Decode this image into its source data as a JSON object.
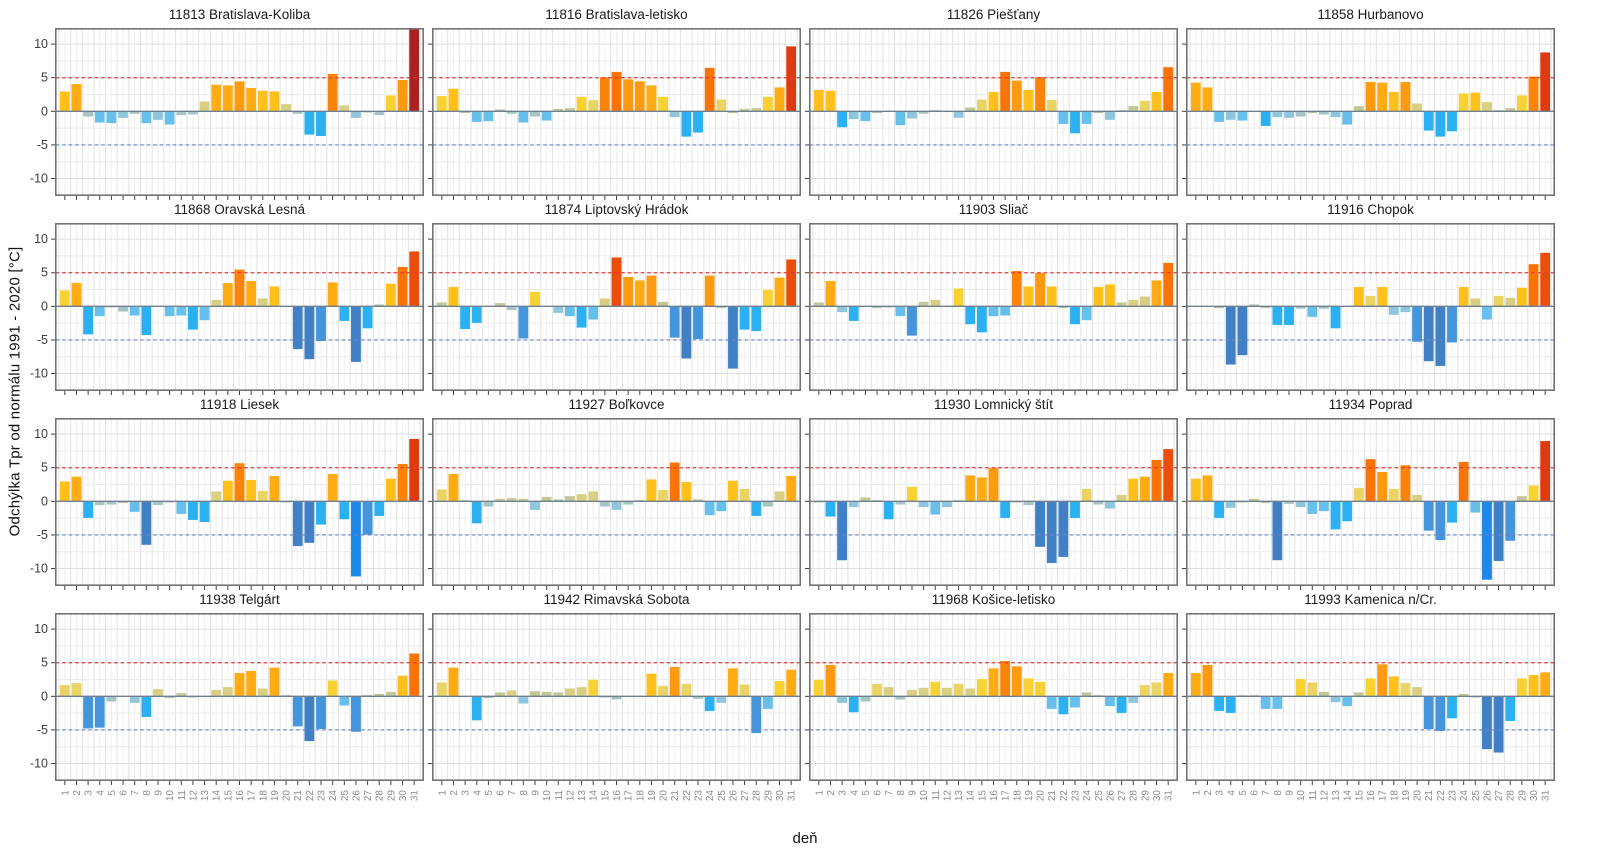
{
  "axis": {
    "y_label": "Odchýlka Tpr od normálu 1991 - 2020 [°C]",
    "x_label": "deň",
    "y_ticks": [
      10,
      5,
      0,
      -5,
      -10
    ],
    "x_tick_first": 1,
    "x_tick_last": 31
  },
  "chart_data": {
    "type": "bar",
    "layout": "small-multiples 4x4",
    "x": [
      1,
      2,
      3,
      4,
      5,
      6,
      7,
      8,
      9,
      10,
      11,
      12,
      13,
      14,
      15,
      16,
      17,
      18,
      19,
      20,
      21,
      22,
      23,
      24,
      25,
      26,
      27,
      28,
      29,
      30,
      31
    ],
    "xlabel": "deň",
    "ylabel": "Odchýlka Tpr od normálu 1991 - 2020 [°C]",
    "ylim": [
      -12.6,
      12.4
    ],
    "grid": true,
    "ref_lines": [
      {
        "y": 5,
        "style": "dashed",
        "color": "#e03c3c"
      },
      {
        "y": -5,
        "style": "dashed",
        "color": "#6a85c2"
      },
      {
        "y": 0,
        "style": "solid",
        "color": "#708090"
      }
    ],
    "color_scale": [
      {
        "ge": 12,
        "color": "#a9221f"
      },
      {
        "ge": 8.4,
        "color": "#df3910"
      },
      {
        "ge": 6.9,
        "color": "#eb4d0b"
      },
      {
        "ge": 5.8,
        "color": "#f97307"
      },
      {
        "ge": 5.1,
        "color": "#fb8408"
      },
      {
        "ge": 4.35,
        "color": "#fe9a10"
      },
      {
        "ge": 3.5,
        "color": "#ffac14"
      },
      {
        "ge": 2.8,
        "color": "#ffc01c"
      },
      {
        "ge": 2.15,
        "color": "#f8d133"
      },
      {
        "ge": 1.55,
        "color": "#ead464"
      },
      {
        "ge": 0.85,
        "color": "#d9cf83"
      },
      {
        "ge": 0.35,
        "color": "#c3c795"
      },
      {
        "ge": -0.35,
        "color": "#b2c2a8"
      },
      {
        "ge": -0.85,
        "color": "#a6c4c3"
      },
      {
        "ge": -1.35,
        "color": "#90c6dc"
      },
      {
        "ge": -2.15,
        "color": "#67c0eb"
      },
      {
        "ge": -4.35,
        "color": "#2bb1f1"
      },
      {
        "ge": -6.1,
        "color": "#4495dc"
      },
      {
        "ge": -9.55,
        "color": "#4180c5"
      }
    ],
    "color_low": "#1e88e8",
    "panels": [
      {
        "title": "11813 Bratislava-Koliba",
        "values": [
          3.0,
          4.1,
          -0.8,
          -1.7,
          -1.8,
          -1.0,
          -0.4,
          -1.8,
          -1.3,
          -2.0,
          -0.6,
          -0.5,
          1.5,
          4.0,
          3.9,
          4.5,
          3.5,
          3.1,
          3.0,
          1.1,
          -0.4,
          -3.5,
          -3.7,
          5.6,
          0.9,
          -1.0,
          -0.2,
          -0.6,
          2.4,
          4.7,
          12.8
        ]
      },
      {
        "title": "11816 Bratislava-letisko",
        "values": [
          2.3,
          3.4,
          -0.3,
          -1.6,
          -1.5,
          0.3,
          -0.4,
          -1.7,
          -0.8,
          -1.4,
          0.4,
          0.5,
          2.2,
          1.7,
          5.1,
          5.9,
          4.8,
          4.5,
          3.9,
          2.2,
          -0.9,
          -3.8,
          -3.2,
          6.5,
          1.8,
          -0.3,
          0.4,
          0.5,
          2.2,
          3.6,
          9.7
        ]
      },
      {
        "title": "11826 Piešťany",
        "values": [
          3.2,
          3.1,
          -2.4,
          -1.2,
          -1.5,
          -0.3,
          0.1,
          -2.1,
          -1.1,
          -0.4,
          0.2,
          0.1,
          -1.0,
          0.6,
          1.8,
          2.9,
          5.9,
          4.6,
          3.2,
          5.1,
          1.7,
          -1.9,
          -3.3,
          -1.9,
          -0.3,
          -1.3,
          0.2,
          0.8,
          1.6,
          2.9,
          6.6
        ]
      },
      {
        "title": "11858 Hurbanovo",
        "values": [
          4.3,
          3.6,
          -1.6,
          -1.3,
          -1.4,
          -0.1,
          -2.2,
          -0.9,
          -1.0,
          -0.8,
          -0.3,
          -0.5,
          -0.9,
          -2.0,
          0.8,
          4.4,
          4.3,
          2.9,
          4.4,
          1.2,
          -2.9,
          -3.8,
          -3.0,
          2.7,
          2.8,
          1.4,
          0.2,
          0.5,
          2.4,
          5.2,
          8.8
        ]
      },
      {
        "title": "11868 Oravská Lesná",
        "values": [
          2.4,
          3.5,
          -4.2,
          -1.5,
          -0.2,
          -0.8,
          -1.4,
          -4.3,
          -0.1,
          -1.5,
          -1.4,
          -3.5,
          -2.1,
          1.0,
          3.5,
          5.5,
          3.8,
          1.2,
          3.0,
          -0.1,
          -6.4,
          -7.9,
          -5.2,
          3.6,
          -2.2,
          -8.3,
          -3.3,
          0.3,
          3.4,
          5.9,
          8.2
        ]
      },
      {
        "title": "11874 Liptovský Hrádok",
        "values": [
          0.6,
          2.9,
          -3.4,
          -2.5,
          -0.1,
          0.5,
          -0.6,
          -4.8,
          2.2,
          -0.1,
          -1.0,
          -1.5,
          -3.2,
          -2.0,
          1.2,
          7.3,
          4.4,
          3.9,
          4.6,
          0.7,
          -4.7,
          -7.8,
          -4.9,
          4.6,
          -0.3,
          -9.3,
          -3.5,
          -3.7,
          2.5,
          4.3,
          7.0
        ]
      },
      {
        "title": "11903 Sliač",
        "values": [
          0.6,
          3.8,
          -0.9,
          -2.2,
          -0.1,
          -0.3,
          -0.2,
          -1.5,
          -4.4,
          0.7,
          1.0,
          0.1,
          2.7,
          -2.7,
          -3.9,
          -1.5,
          -1.4,
          5.3,
          3.0,
          5.0,
          3.0,
          -0.3,
          -2.7,
          -2.1,
          2.9,
          3.3,
          0.6,
          1.0,
          1.5,
          3.9,
          6.5
        ]
      },
      {
        "title": "11916 Chopok",
        "values": [
          -0.1,
          -0.1,
          -0.3,
          -8.7,
          -7.3,
          0.3,
          -0.3,
          -2.8,
          -2.8,
          -0.4,
          -1.6,
          -0.4,
          -3.3,
          -0.1,
          2.9,
          1.6,
          2.9,
          -1.3,
          -0.9,
          -5.3,
          -8.2,
          -8.9,
          -5.4,
          2.9,
          1.2,
          -2.0,
          1.6,
          1.3,
          2.8,
          6.3,
          8.0
        ]
      },
      {
        "title": "11918 Liesek",
        "values": [
          3.0,
          3.7,
          -2.5,
          -0.6,
          -0.5,
          -0.3,
          -1.6,
          -6.5,
          -0.6,
          -0.2,
          -1.9,
          -2.8,
          -3.1,
          1.5,
          3.1,
          5.7,
          3.2,
          1.6,
          3.8,
          -0.2,
          -6.7,
          -6.2,
          -3.5,
          4.1,
          -2.7,
          -11.2,
          -5.0,
          -2.2,
          3.4,
          5.6,
          9.3
        ]
      },
      {
        "title": "11927 Boľkovce",
        "values": [
          1.8,
          4.1,
          0.2,
          -3.3,
          -0.8,
          0.4,
          0.5,
          0.4,
          -1.3,
          0.7,
          0.3,
          0.8,
          1.1,
          1.5,
          -0.8,
          -1.3,
          -0.5,
          0.2,
          3.3,
          1.7,
          5.8,
          2.9,
          0.3,
          -2.1,
          -1.5,
          3.1,
          1.9,
          -2.2,
          -0.8,
          1.5,
          3.8
        ]
      },
      {
        "title": "11930 Lomnický štít",
        "values": [
          -0.2,
          -2.3,
          -8.8,
          -0.9,
          0.6,
          0.2,
          -2.7,
          -0.5,
          2.2,
          -0.9,
          -2.0,
          -0.9,
          0.2,
          3.9,
          3.6,
          5.0,
          -2.5,
          -0.2,
          -0.6,
          -6.8,
          -9.2,
          -8.3,
          -2.5,
          1.9,
          -0.5,
          -1.1,
          1.0,
          3.4,
          3.7,
          6.2,
          7.8
        ]
      },
      {
        "title": "11934 Poprad",
        "values": [
          3.4,
          3.9,
          -2.5,
          -1.0,
          -0.2,
          0.4,
          -0.3,
          -8.8,
          -0.4,
          -0.9,
          -1.9,
          -1.5,
          -4.2,
          -3.0,
          2.0,
          6.3,
          4.4,
          1.9,
          5.4,
          1.0,
          -4.4,
          -5.8,
          -3.2,
          5.9,
          -1.7,
          -11.7,
          -8.9,
          -5.9,
          0.8,
          2.4,
          9.0
        ]
      },
      {
        "title": "11938 Telgárt",
        "values": [
          1.7,
          2.0,
          -4.8,
          -4.7,
          -0.8,
          -0.1,
          -1.0,
          -3.1,
          1.1,
          -0.3,
          0.5,
          -0.2,
          -0.1,
          1.0,
          1.4,
          3.5,
          3.8,
          1.2,
          4.3,
          0.2,
          -4.5,
          -6.7,
          -4.9,
          2.4,
          -1.4,
          -5.3,
          0.2,
          0.4,
          0.7,
          3.1,
          6.4
        ]
      },
      {
        "title": "11942 Rimavská Sobota",
        "values": [
          2.1,
          4.3,
          -0.1,
          -3.6,
          -0.3,
          0.6,
          0.9,
          -1.1,
          0.8,
          0.7,
          0.6,
          1.2,
          1.4,
          2.5,
          -0.2,
          -0.5,
          -0.1,
          0.1,
          3.4,
          1.6,
          4.4,
          1.9,
          -0.4,
          -2.2,
          -1.0,
          4.2,
          1.8,
          -5.5,
          -1.9,
          2.3,
          4.0
        ]
      },
      {
        "title": "11968 Košice-letisko",
        "values": [
          2.5,
          4.7,
          -1.0,
          -2.4,
          -0.8,
          1.9,
          1.4,
          -0.5,
          1.0,
          1.3,
          2.2,
          1.3,
          1.9,
          1.2,
          2.6,
          4.2,
          5.3,
          4.5,
          2.7,
          2.2,
          -1.9,
          -2.7,
          -1.7,
          0.6,
          0.2,
          -1.5,
          -2.5,
          -1.0,
          1.7,
          2.1,
          3.5
        ]
      },
      {
        "title": "11993 Kamenica n/Cr.",
        "values": [
          3.5,
          4.7,
          -2.2,
          -2.5,
          0.2,
          0.2,
          -1.9,
          -1.9,
          -0.1,
          2.6,
          2.1,
          0.7,
          -0.9,
          -1.5,
          0.6,
          2.7,
          4.8,
          3.0,
          2.0,
          1.4,
          -4.9,
          -5.2,
          -3.3,
          0.4,
          -0.2,
          -7.9,
          -8.4,
          -3.7,
          2.7,
          3.2,
          3.6
        ]
      }
    ]
  }
}
